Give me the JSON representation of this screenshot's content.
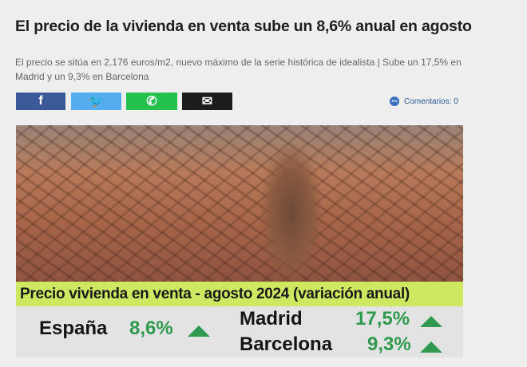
{
  "article": {
    "title": "El precio de la vivienda en venta sube un 8,6% anual en agosto",
    "subtitle": "El precio se sitúa en 2.176 euros/m2, nuevo máximo de la serie histórica de idealista | Sube un 17,5% en Madrid y un 9,3% en Barcelona"
  },
  "share": [
    {
      "name": "facebook",
      "icon": "facebook-icon",
      "color": "#3b5998",
      "glyph": "f"
    },
    {
      "name": "twitter",
      "icon": "twitter-icon",
      "color": "#55acee",
      "glyph": "🐦"
    },
    {
      "name": "whatsapp",
      "icon": "whatsapp-icon",
      "color": "#25c14f",
      "glyph": "✆"
    },
    {
      "name": "email",
      "icon": "mail-icon",
      "color": "#1c1c1c",
      "glyph": "✉"
    }
  ],
  "comments": {
    "label": "Comentarios: 0",
    "icon": "comment-bubble-icon"
  },
  "infographic": {
    "header": "Precio vivienda en venta  - agosto 2024 (variación anual)",
    "rows": [
      {
        "place": "España",
        "change": "8,6%",
        "trend": "up"
      },
      {
        "place": "Madrid",
        "change": "17,5%",
        "trend": "up"
      },
      {
        "place": "Barcelona",
        "change": "9,3%",
        "trend": "up"
      }
    ],
    "accent": "#2f9a4f",
    "band_color": "#cfe861"
  }
}
